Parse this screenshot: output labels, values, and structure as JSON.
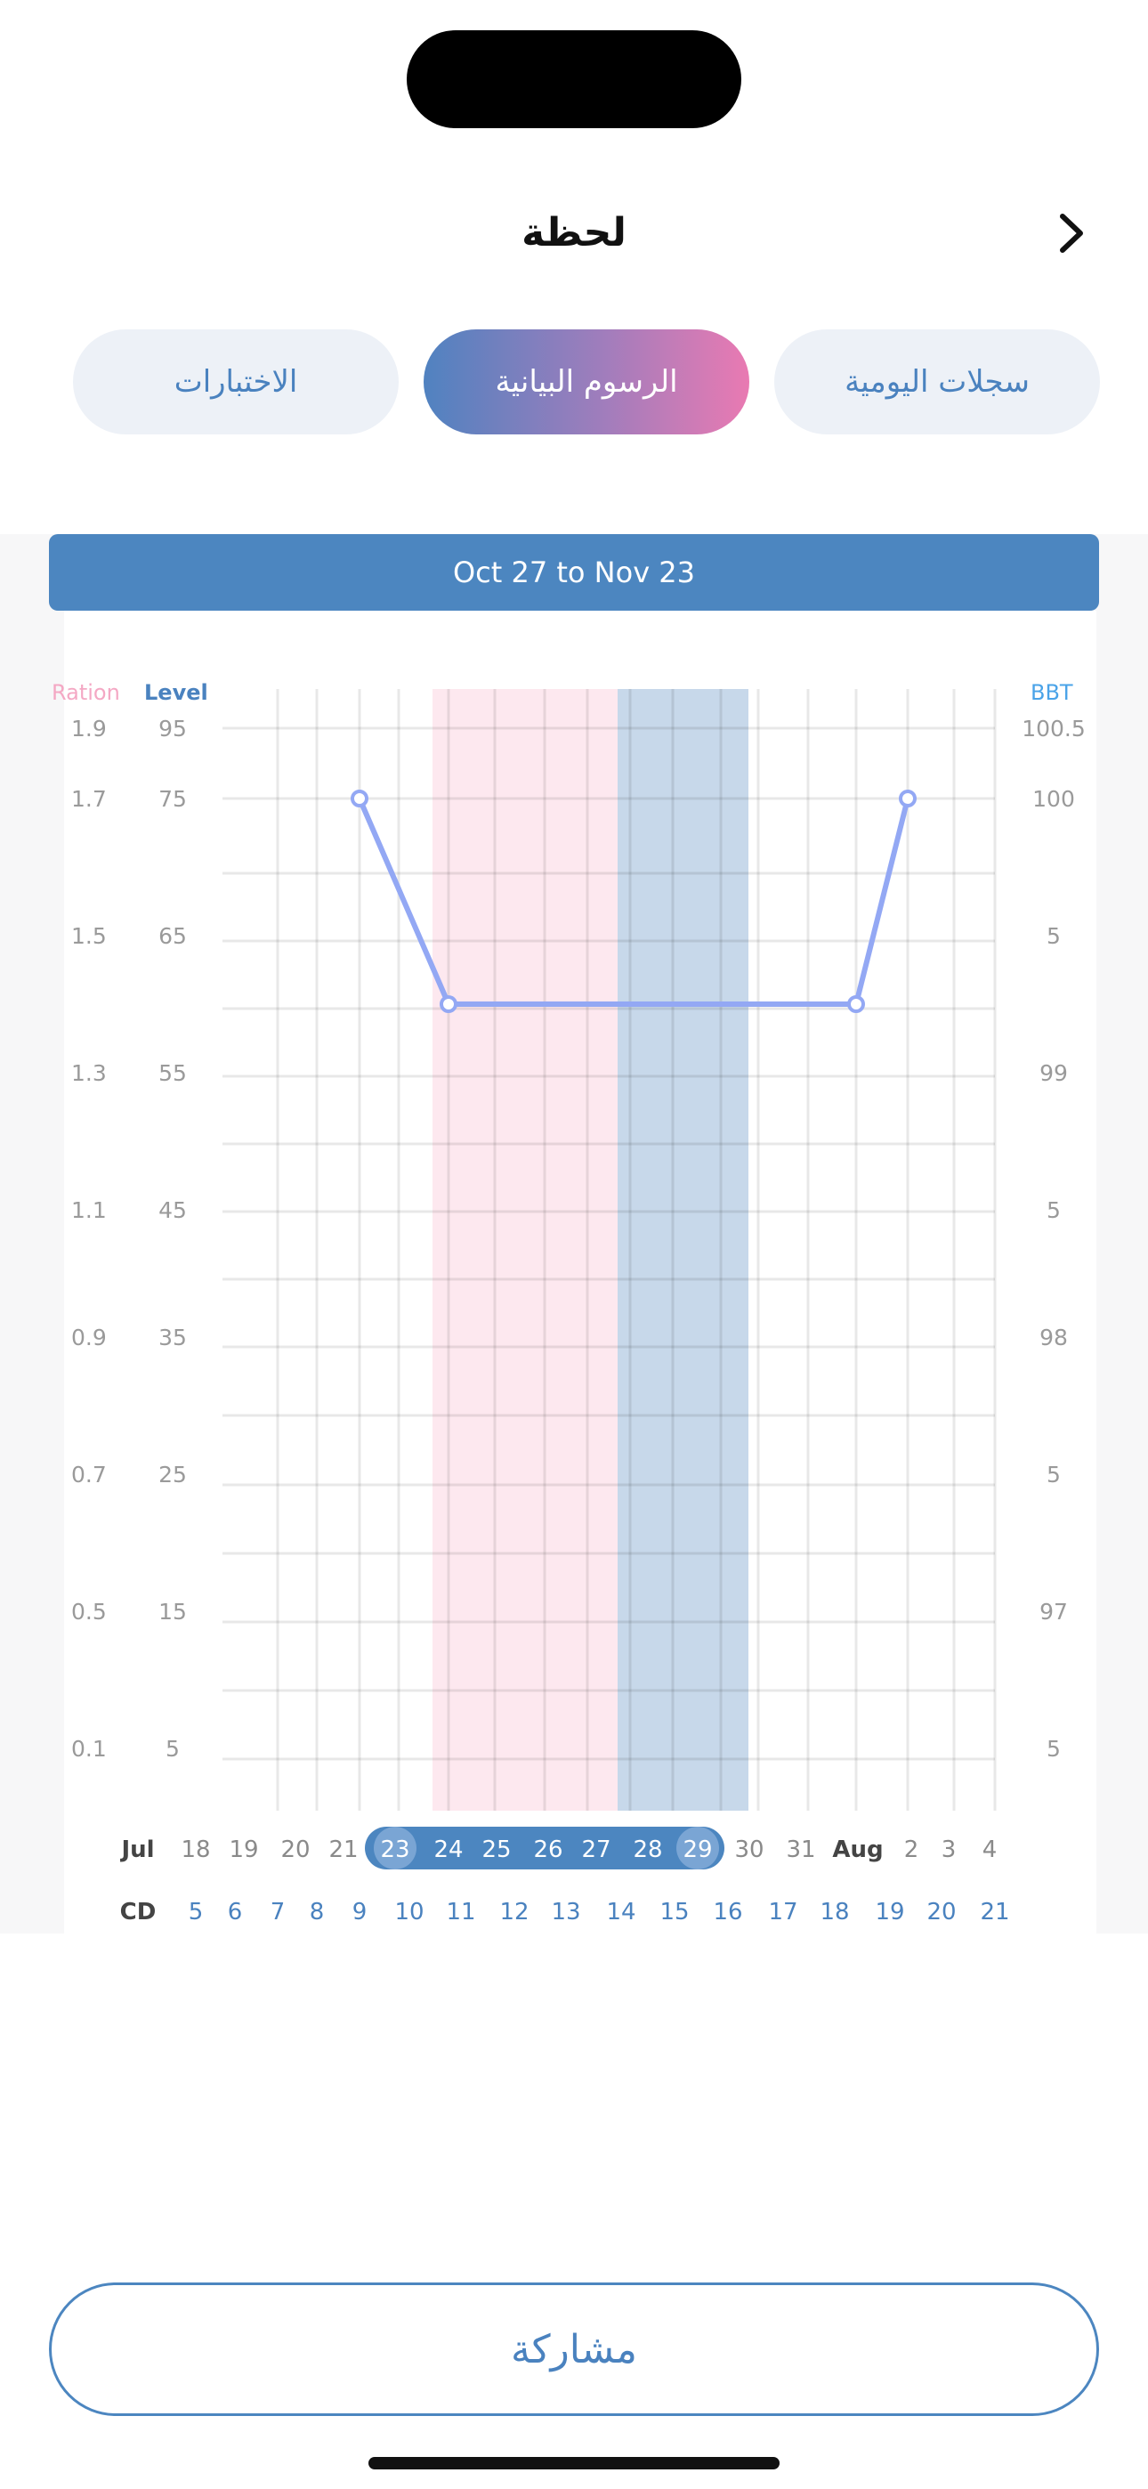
{
  "header": {
    "title": "لحظة",
    "back_icon": "chevron-right-icon"
  },
  "tabs": [
    {
      "label": "سجلات اليومية",
      "active": false
    },
    {
      "label": "الرسوم البيانية",
      "active": true
    },
    {
      "label": "الاختبارات",
      "active": false
    }
  ],
  "range_label": "Oct 27 to Nov 23",
  "chart_data": {
    "type": "line",
    "axes": {
      "ratio": {
        "label": "Ration",
        "ticks": [
          "1.9",
          "1.7",
          "1.5",
          "1.3",
          "1.1",
          "0.9",
          "0.7",
          "0.5",
          "0.1"
        ]
      },
      "level": {
        "label": "Level",
        "ticks": [
          "95",
          "75",
          "65",
          "55",
          "45",
          "35",
          "25",
          "15",
          "5"
        ]
      },
      "bbt": {
        "label": "BBT",
        "ticks": [
          "100.5",
          "100",
          "5",
          "99",
          "5",
          "98",
          "5",
          "97",
          "5"
        ]
      }
    },
    "date_row_label": "Jul",
    "dates": [
      "18",
      "19",
      "20",
      "21",
      "23",
      "24",
      "25",
      "26",
      "27",
      "28",
      "29",
      "30",
      "31",
      "Aug",
      "2",
      "3",
      "4"
    ],
    "cd_row_label": "CD",
    "cycle_days": [
      "5",
      "6",
      "7",
      "8",
      "9",
      "10",
      "11",
      "12",
      "13",
      "14",
      "15",
      "16",
      "17",
      "18",
      "19",
      "20",
      "21"
    ],
    "highlighted_dates": [
      "23",
      "24",
      "25",
      "26",
      "27",
      "28",
      "29"
    ],
    "period_shading": {
      "from_cd": 9,
      "to_cd": 12,
      "color": "#fde8ef"
    },
    "fertile_shading": {
      "from_cd": 13,
      "to_cd": 15,
      "color": "#c7d8ea"
    },
    "series": [
      {
        "points": [
          {
            "cd": 7,
            "level": 75
          },
          {
            "cd": 9,
            "level": 60
          },
          {
            "cd": 18,
            "level": 60
          },
          {
            "cd": 19,
            "level": 75
          }
        ],
        "color": "#93a8f4"
      }
    ],
    "colors": {
      "ratio": "#f4a8c4",
      "level": "#4a82bf",
      "bbt": "#4aa3e8",
      "tick": "#9a9a9a",
      "cd": "#4a82bf"
    }
  },
  "share_label": "مشاركة"
}
